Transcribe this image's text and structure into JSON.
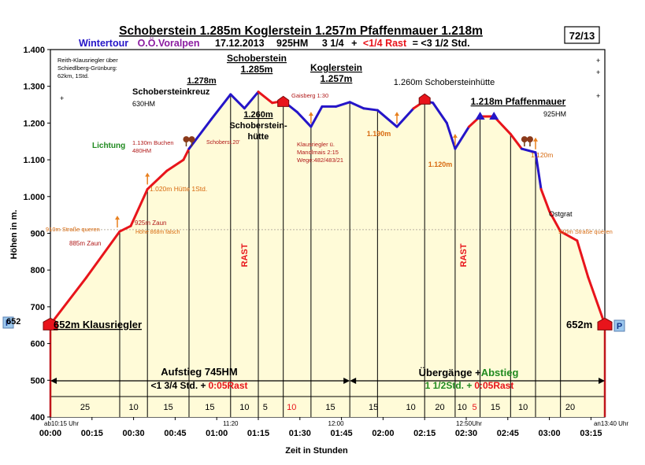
{
  "header": {
    "title": "Schoberstein 1.285m  Koglerstein 1.257m  Pfaffenmauer  1.218m",
    "sub_tour": "Wintertour",
    "sub_region": "O.Ö.Voralpen",
    "sub_date": "17.12.2013",
    "sub_hm": "925HM",
    "sub_dur": "3 1/4",
    "sub_plus": "+",
    "sub_rest": "<1/4 Rast",
    "sub_total": "= <3 1/2 Std.",
    "page_badge": "72/13"
  },
  "colors": {
    "ascent": "#e8141b",
    "descent_blue": "#2515c8",
    "fill": "#fffbd8",
    "title": "#000000",
    "tour": "#2515c8",
    "region": "#8b1ca0",
    "rest": "#e8141b",
    "green": "#1f8a1f",
    "annot_red": "#b01818",
    "annot_orange": "#d76a10"
  },
  "chart_data": {
    "type": "area",
    "title": "Schoberstein 1.285m  Koglerstein 1.257m  Pfaffenmauer  1.218m",
    "xlabel": "Zeit in Stunden",
    "ylabel": "Höhen in m.",
    "xlim": [
      0,
      200
    ],
    "ylim": [
      400,
      1400
    ],
    "y_ticks": [
      400,
      500,
      600,
      700,
      800,
      900,
      1000,
      1100,
      1200,
      1300,
      1400
    ],
    "y_tick_labels": [
      "400",
      "500",
      "600",
      "700",
      "800",
      "900",
      "1.000",
      "1.100",
      "1.200",
      "1.300",
      "1.400"
    ],
    "x_ticks": [
      0,
      15,
      30,
      45,
      60,
      75,
      90,
      105,
      120,
      135,
      150,
      165,
      180,
      195
    ],
    "x_tick_labels": [
      "00:00",
      "00:15",
      "00:30",
      "00:45",
      "01:00",
      "01:15",
      "01:30",
      "01:45",
      "02:00",
      "02:15",
      "02:30",
      "02:45",
      "03:00",
      "03:15"
    ],
    "reference_line": 910,
    "grid": false,
    "profile": [
      {
        "x": 0,
        "y": 652,
        "seg": "ascent"
      },
      {
        "x": 13,
        "y": 780,
        "seg": "ascent"
      },
      {
        "x": 25,
        "y": 905,
        "seg": "ascent"
      },
      {
        "x": 29,
        "y": 920,
        "seg": "ascent"
      },
      {
        "x": 35,
        "y": 1020,
        "seg": "ascent"
      },
      {
        "x": 42,
        "y": 1070,
        "seg": "ascent"
      },
      {
        "x": 48,
        "y": 1100,
        "seg": "ascent"
      },
      {
        "x": 50,
        "y": 1130,
        "seg": "ascent"
      },
      {
        "x": 58,
        "y": 1210,
        "seg": "blue"
      },
      {
        "x": 65,
        "y": 1278,
        "seg": "blue"
      },
      {
        "x": 70,
        "y": 1240,
        "seg": "blue"
      },
      {
        "x": 75,
        "y": 1285,
        "seg": "blue"
      },
      {
        "x": 80,
        "y": 1255,
        "seg": "red"
      },
      {
        "x": 84,
        "y": 1260,
        "seg": "red"
      },
      {
        "x": 89,
        "y": 1230,
        "seg": "blue"
      },
      {
        "x": 94,
        "y": 1190,
        "seg": "blue"
      },
      {
        "x": 98,
        "y": 1245,
        "seg": "blue"
      },
      {
        "x": 103,
        "y": 1245,
        "seg": "blue"
      },
      {
        "x": 108,
        "y": 1257,
        "seg": "blue"
      },
      {
        "x": 113,
        "y": 1240,
        "seg": "blue"
      },
      {
        "x": 118,
        "y": 1235,
        "seg": "blue"
      },
      {
        "x": 125,
        "y": 1190,
        "seg": "blue"
      },
      {
        "x": 131,
        "y": 1240,
        "seg": "blue"
      },
      {
        "x": 135,
        "y": 1260,
        "seg": "red"
      },
      {
        "x": 138,
        "y": 1255,
        "seg": "blue"
      },
      {
        "x": 143,
        "y": 1200,
        "seg": "blue"
      },
      {
        "x": 146,
        "y": 1130,
        "seg": "blue"
      },
      {
        "x": 151,
        "y": 1190,
        "seg": "blue"
      },
      {
        "x": 155,
        "y": 1218,
        "seg": "red"
      },
      {
        "x": 160,
        "y": 1218,
        "seg": "red"
      },
      {
        "x": 166,
        "y": 1170,
        "seg": "red"
      },
      {
        "x": 170,
        "y": 1130,
        "seg": "red"
      },
      {
        "x": 175,
        "y": 1120,
        "seg": "blue"
      },
      {
        "x": 177,
        "y": 1020,
        "seg": "blue"
      },
      {
        "x": 180,
        "y": 960,
        "seg": "red"
      },
      {
        "x": 184,
        "y": 905,
        "seg": "red"
      },
      {
        "x": 190,
        "y": 880,
        "seg": "red"
      },
      {
        "x": 194,
        "y": 780,
        "seg": "red"
      },
      {
        "x": 200,
        "y": 652,
        "seg": "red"
      }
    ],
    "verticals": [
      {
        "x": 25,
        "y": 905
      },
      {
        "x": 35,
        "y": 1020
      },
      {
        "x": 50,
        "y": 1130
      },
      {
        "x": 65,
        "y": 1278
      },
      {
        "x": 75,
        "y": 1285
      },
      {
        "x": 84,
        "y": 1260
      },
      {
        "x": 94,
        "y": 1190
      },
      {
        "x": 108,
        "y": 1257
      },
      {
        "x": 118,
        "y": 1235
      },
      {
        "x": 135,
        "y": 1260
      },
      {
        "x": 146,
        "y": 1130
      },
      {
        "x": 155,
        "y": 1218
      },
      {
        "x": 166,
        "y": 1170
      },
      {
        "x": 175,
        "y": 1120
      },
      {
        "x": 184,
        "y": 905
      }
    ],
    "segment_minutes": [
      {
        "x1": 0,
        "x2": 25,
        "label": "25",
        "red": false
      },
      {
        "x1": 25,
        "x2": 35,
        "label": "10",
        "red": false
      },
      {
        "x1": 35,
        "x2": 50,
        "label": "15",
        "red": false
      },
      {
        "x1": 50,
        "x2": 65,
        "label": "15",
        "red": false
      },
      {
        "x1": 65,
        "x2": 75,
        "label": "10",
        "red": false
      },
      {
        "x1": 75,
        "x2": 80,
        "label": "5",
        "red": false
      },
      {
        "x1": 80,
        "x2": 94,
        "label": "10",
        "red": true
      },
      {
        "x1": 94,
        "x2": 108,
        "label": "15",
        "red": false
      },
      {
        "x1": 108,
        "x2": 125,
        "label": "15",
        "red": false
      },
      {
        "x1": 125,
        "x2": 135,
        "label": "10",
        "red": false
      },
      {
        "x1": 135,
        "x2": 146,
        "label": "20",
        "red": false
      },
      {
        "x1": 146,
        "x2": 151,
        "label": "10",
        "red": false
      },
      {
        "x1": 151,
        "x2": 155,
        "label": "5",
        "red": true
      },
      {
        "x1": 155,
        "x2": 166,
        "label": "15",
        "red": false
      },
      {
        "x1": 166,
        "x2": 175,
        "label": "10",
        "red": false
      },
      {
        "x1": 175,
        "x2": 200,
        "label": "20",
        "red": false
      }
    ],
    "clock_labels": [
      {
        "x": 0,
        "text": "ab10:15 Uhr"
      },
      {
        "x": 65,
        "text": "11:20"
      },
      {
        "x": 103,
        "text": "12:00"
      },
      {
        "x": 151,
        "text": "12:50Uhr"
      },
      {
        "x": 200,
        "text": "an13:40 Uhr"
      }
    ],
    "rast_markers": [
      {
        "x": 71,
        "y": 840,
        "text": "RAST"
      },
      {
        "x": 150,
        "y": 840,
        "text": "RAST"
      }
    ],
    "summary_left": {
      "title": "Aufstieg 745HM",
      "line2a": "<1 3/4 Std. +",
      "line2b": "0:05Rast",
      "x1": 0,
      "x2": 108
    },
    "summary_right": {
      "title_a": "Übergänge +",
      "title_b": "Abstieg",
      "line2a": "1 1/2Std. +",
      "line2b": "0:05Rast",
      "x1": 108,
      "x2": 200
    }
  },
  "annotations": {
    "reith": [
      "Reith-Klausriegler über",
      "Schiedlberg-Grünburg:",
      "62km, 1Std."
    ],
    "schoberstein_top": [
      "Schoberstein",
      "1.285m"
    ],
    "koglerstein_top": [
      "Koglerstein",
      "1.257m"
    ],
    "p1278": "1.278m",
    "schobersteinkreuz": "Schobersteinkreuz",
    "hm630": "630HM",
    "p1260": "1.260m",
    "huette": [
      "Schoberstein-",
      "hütte"
    ],
    "gaisberg": "Gaisberg 1:30",
    "klaus": [
      "Klausriegler ü.",
      "Mandlmais 2:15",
      "Wege:482/483/21"
    ],
    "p1190": "1.190m",
    "huette_right": "1.260m Schobersteinhütte",
    "pfaffenmauer": "1.218m Pfaffenmauer",
    "hm925": "925HM",
    "p1120a": "1.120m",
    "p1120b": "1.120m",
    "ostgrat": "Ostgrat",
    "str910_right": "910m  Straße queren",
    "lichtung": "Lichtung",
    "buchen": [
      "1.130m Buchen",
      "480HM"
    ],
    "schoberst20": "Schoberst.20'",
    "huette1": "1.020m Hütte 1Std.",
    "zaun925": "925m Zaun",
    "hoehe": "Höhe 868m falsch",
    "str910_left": "910m Straße queren",
    "zaun885": "885m Zaun",
    "start_label": "652m Klausriegler",
    "end_label": "652m",
    "left_652": "652",
    "parking": "P",
    "plus": "+"
  }
}
